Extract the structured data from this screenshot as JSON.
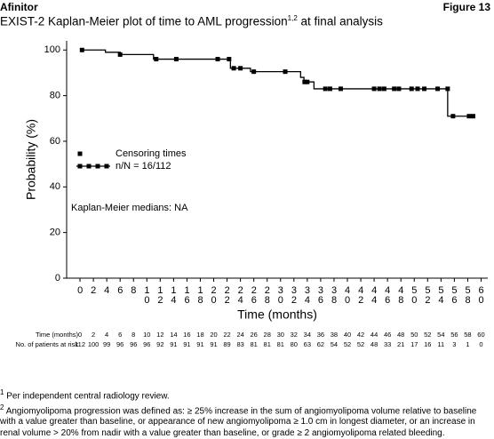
{
  "header": {
    "brand": "Afinitor",
    "figure": "Figure 13",
    "title": "EXIST-2 Kaplan-Meier plot of time to AML progression",
    "title_sup": "1,2",
    "title_suffix": "at final analysis"
  },
  "chart_data": {
    "type": "km",
    "xlabel": "Time (months)",
    "ylabel": "Probability (%)",
    "xlim": [
      -2,
      61
    ],
    "ylim": [
      0,
      104
    ],
    "xticks": [
      0,
      2,
      4,
      6,
      8,
      10,
      12,
      14,
      16,
      18,
      20,
      22,
      24,
      26,
      28,
      30,
      32,
      34,
      36,
      38,
      40,
      42,
      44,
      46,
      48,
      50,
      52,
      54,
      56,
      58,
      60
    ],
    "yticks": [
      0,
      20,
      40,
      60,
      80,
      100
    ],
    "annotation": "Kaplan-Meier medians: NA",
    "series": [
      {
        "name": "Censoring times",
        "style": "markers",
        "color": "#000000",
        "x": [
          0.3,
          6,
          11.4,
          14.4,
          20.6,
          22.3,
          23,
          24,
          26,
          30.7,
          33.6,
          34,
          36.7,
          37.4,
          39,
          44,
          44.8,
          45.5,
          47,
          47.7,
          49.6,
          50.5,
          51.5,
          53.5,
          55,
          55.8,
          58.2,
          58.8
        ],
        "values": [
          100,
          98,
          96,
          96,
          96,
          96,
          92,
          92,
          90.5,
          90.5,
          86,
          86,
          83,
          83,
          83,
          83,
          83,
          83,
          83,
          83,
          83,
          83,
          83,
          83,
          83,
          71,
          71,
          71
        ]
      },
      {
        "name": "n/N = 16/112",
        "style": "step",
        "color": "#000000",
        "x": [
          0,
          3.8,
          6,
          11,
          22.5,
          25.5,
          33,
          33.5,
          35,
          55,
          58.8
        ],
        "values": [
          100,
          99,
          98,
          96,
          92,
          90.5,
          88,
          86,
          83,
          71,
          71
        ]
      }
    ]
  },
  "risk_table": {
    "time_label": "Time (months)",
    "risk_label": "No. of patients at risk",
    "times": [
      0,
      2,
      4,
      6,
      8,
      10,
      12,
      14,
      16,
      18,
      20,
      22,
      24,
      26,
      28,
      30,
      32,
      34,
      36,
      38,
      40,
      42,
      44,
      46,
      48,
      50,
      52,
      54,
      56,
      58,
      60
    ],
    "at_risk": [
      112,
      100,
      99,
      96,
      96,
      96,
      92,
      91,
      91,
      91,
      91,
      89,
      83,
      81,
      81,
      81,
      80,
      63,
      62,
      54,
      52,
      52,
      48,
      33,
      21,
      17,
      16,
      11,
      3,
      1,
      0
    ]
  },
  "footnotes": [
    {
      "mark": "1",
      "text": "Per independent central radiology review."
    },
    {
      "mark": "2",
      "text": "Angiomyolipoma progression was defined as: ≥ 25% increase in the sum of angiomyolipoma volume relative to baseline with a value greater than baseline, or appearance of new angiomyolipoma ≥ 1.0 cm in longest diameter, or an increase in renal volume > 20% from nadir with a value greater than baseline, or grade ≥ 2 angiomyolipoma related bleeding."
    }
  ]
}
